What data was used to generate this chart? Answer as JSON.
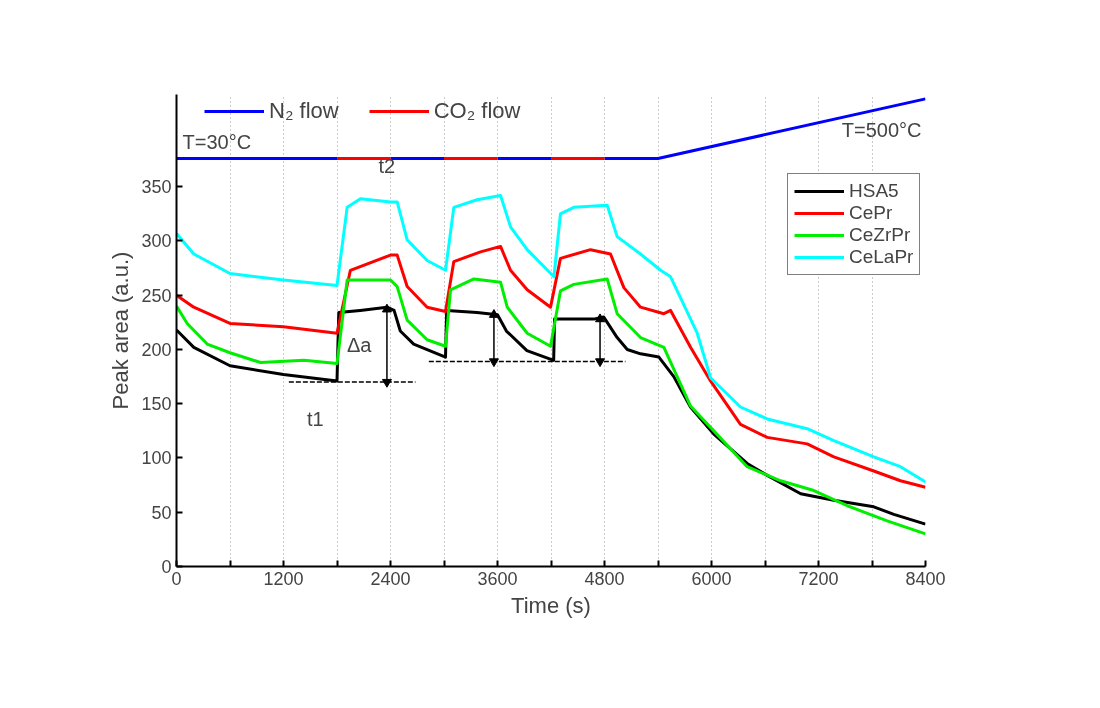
{
  "chart_data": {
    "type": "line",
    "xlabel": "Time (s)",
    "ylabel": "Peak area (a.u.)",
    "xlim": [
      0,
      8400
    ],
    "ylim": [
      0,
      435
    ],
    "xticks": [
      0,
      {
        "value": 600,
        "label": null
      },
      1200,
      {
        "value": 1800,
        "label": null
      },
      2400,
      {
        "value": 3000,
        "label": null
      },
      3600,
      {
        "value": 4200,
        "label": null
      },
      4800,
      {
        "value": 5400,
        "label": null
      },
      6000,
      {
        "value": 6600,
        "label": null
      },
      7200,
      {
        "value": 7800,
        "label": null
      },
      8400
    ],
    "yticks": [
      0,
      50,
      100,
      150,
      200,
      250,
      300,
      350
    ],
    "grid": "x",
    "legend": "top right",
    "marker": "none",
    "line_style": "solid",
    "series": [
      {
        "name": "HSA5",
        "color": "#000000",
        "x": [
          0,
          194,
          600,
          1200,
          1800,
          1820,
          2060,
          2360,
          2440,
          2510,
          2660,
          3017,
          3030,
          3370,
          3600,
          3700,
          3930,
          4230,
          4240,
          4680,
          4790,
          4942,
          5055,
          5204,
          5410,
          5577,
          5764,
          6026,
          6400,
          6625,
          7000,
          7372,
          7820,
          8045,
          8400
        ],
        "values": [
          218,
          202,
          185,
          177,
          171,
          234,
          236,
          239,
          236,
          217,
          205,
          193,
          236,
          234,
          232,
          217,
          199,
          190,
          228,
          228,
          230,
          211,
          200,
          196,
          193,
          175,
          147,
          122,
          95,
          84,
          67,
          61,
          55,
          48,
          39
        ]
      },
      {
        "name": "CePr",
        "color": "#ff0000",
        "x": [
          0,
          194,
          600,
          1200,
          1800,
          1950,
          2400,
          2475,
          2587,
          2811,
          3017,
          3110,
          3410,
          3634,
          3746,
          3933,
          4195,
          4306,
          4643,
          4867,
          5017,
          5204,
          5466,
          5541,
          5765,
          5989,
          6325,
          6625,
          7073,
          7372,
          7820,
          8119,
          8400
        ],
        "values": [
          250,
          239,
          224,
          221,
          215,
          273,
          287,
          287,
          258,
          239,
          235,
          281,
          290,
          295,
          273,
          255,
          239,
          284,
          292,
          288,
          257,
          239,
          233,
          236,
          202,
          171,
          131,
          119,
          113,
          101,
          88,
          79,
          73
        ]
      },
      {
        "name": "CeZrPr",
        "color": "#00ee00",
        "x": [
          0,
          120,
          344,
          600,
          942,
          1430,
          1800,
          1914,
          2400,
          2475,
          2587,
          2811,
          3017,
          3073,
          3335,
          3634,
          3709,
          3933,
          4195,
          4306,
          4456,
          4830,
          4942,
          5204,
          5466,
          5764,
          6026,
          6400,
          6775,
          7148,
          7522,
          7970,
          8400
        ],
        "values": [
          240,
          224,
          205,
          197,
          188,
          190,
          187,
          264,
          264,
          258,
          227,
          209,
          203,
          255,
          265,
          262,
          239,
          215,
          203,
          254,
          260,
          265,
          233,
          211,
          202,
          148,
          125,
          92,
          79,
          70,
          56,
          42,
          30
        ]
      },
      {
        "name": "CeLaPr",
        "color": "#00ffff",
        "x": [
          0,
          194,
          600,
          1200,
          1800,
          1914,
          2063,
          2400,
          2475,
          2587,
          2811,
          3017,
          3110,
          3372,
          3634,
          3746,
          3933,
          4233,
          4306,
          4456,
          4830,
          4942,
          5204,
          5429,
          5541,
          5840,
          5989,
          6325,
          6625,
          7073,
          7372,
          7820,
          8119,
          8400
        ],
        "values": [
          307,
          288,
          270,
          264,
          259,
          331,
          339,
          336,
          336,
          301,
          282,
          273,
          331,
          338,
          342,
          313,
          292,
          267,
          325,
          331,
          333,
          304,
          288,
          273,
          267,
          215,
          174,
          147,
          136,
          127,
          116,
          101,
          92,
          78
        ]
      },
      {
        "name": "N₂ flow",
        "color": "#0000ff",
        "x": [
          0,
          1800,
          2100,
          2400,
          3000,
          3300,
          3600,
          4200,
          4500,
          4800,
          5400,
          8400
        ],
        "values": [
          376,
          376,
          null,
          376,
          376,
          null,
          376,
          376,
          null,
          376,
          376,
          431
        ]
      },
      {
        "name": "CO₂ flow",
        "color": "#ff0000",
        "x": [
          1800,
          2400,
          2700,
          3000,
          3600,
          3900,
          4200,
          4800
        ],
        "values": [
          376,
          376,
          null,
          376,
          376,
          null,
          376,
          376
        ]
      },
      {
        "color": "#000000",
        "line_style": "dashed",
        "x": [
          1260,
          2680
        ],
        "values": [
          170,
          170
        ]
      },
      {
        "color": "#000000",
        "line_style": "dashed",
        "x": [
          2830,
          5035
        ],
        "values": [
          189,
          189
        ]
      },
      {
        "color": "#000000",
        "marker": "triangle",
        "x": [
          2360,
          2360
        ],
        "values": [
          170,
          237
        ]
      },
      {
        "color": "#000000",
        "marker": "triangle",
        "x": [
          3560,
          3560
        ],
        "values": [
          189,
          232
        ]
      },
      {
        "color": "#000000",
        "marker": "triangle",
        "x": [
          4750,
          4750
        ],
        "values": [
          189,
          228
        ]
      }
    ],
    "annotations": [
      {
        "text": "T=30°C",
        "x": 0,
        "y": 376
      },
      {
        "text": "T=500°C",
        "x": 8400,
        "y": 431
      },
      {
        "text": "t1",
        "x": 1800,
        "y": 170
      },
      {
        "text": "t2",
        "x": 2400,
        "y": 337
      },
      {
        "text": "Δa",
        "x": 2360,
        "y": 203
      }
    ]
  }
}
